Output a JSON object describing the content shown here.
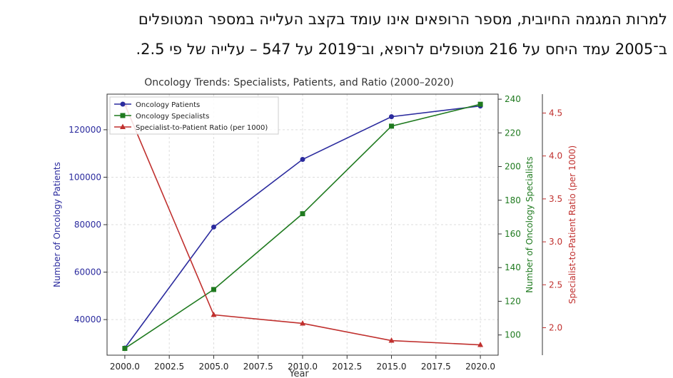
{
  "paragraph": {
    "line1": "למרות המגמה החיובית, מספר הרופאים אינו עומד בקצב העלייה במספר המטופלים",
    "line2": "ב־2005 עמד היחס על 216 מטופלים לרופא, וב־2019 על 547 – עלייה של פי 2.5."
  },
  "colors": {
    "patients": "#2b2b9e",
    "specialists": "#1f7a1f",
    "ratio": "#c0302e"
  },
  "chart_data": {
    "type": "line",
    "title": "Oncology Trends: Specialists, Patients, and Ratio (2000–2020)",
    "xlabel": "Year",
    "x": [
      2000,
      2005,
      2010,
      2015,
      2020
    ],
    "x_ticks": [
      "2000.0",
      "2002.5",
      "2005.0",
      "2007.5",
      "2010.0",
      "2012.5",
      "2015.0",
      "2017.5",
      "2020.0"
    ],
    "xlim": [
      1999,
      2021
    ],
    "grid": true,
    "legend_position": "top-left",
    "series": [
      {
        "name": "Oncology Patients",
        "axis": "left",
        "marker": "circle",
        "values": [
          28000,
          79000,
          107500,
          125500,
          130000
        ]
      },
      {
        "name": "Oncology Specialists",
        "axis": "right1",
        "marker": "square",
        "values": [
          92,
          127,
          172,
          224,
          237
        ]
      },
      {
        "name": "Specialist-to-Patient Ratio (per 1000)",
        "axis": "right2",
        "marker": "triangle",
        "values": [
          4.6,
          2.15,
          2.05,
          1.85,
          1.8
        ]
      }
    ],
    "axes": {
      "left": {
        "label": "Number of Oncology Patients",
        "ticks": [
          40000,
          60000,
          80000,
          100000,
          120000
        ],
        "tick_labels": [
          "40000",
          "60000",
          "80000",
          "100000",
          "120000"
        ],
        "ylim": [
          25000,
          135000
        ]
      },
      "right1": {
        "label": "Number of Oncology Specialists",
        "ticks": [
          100,
          120,
          140,
          160,
          180,
          200,
          220,
          240
        ],
        "tick_labels": [
          "100",
          "120",
          "140",
          "160",
          "180",
          "200",
          "220",
          "240"
        ],
        "ylim": [
          88,
          243
        ]
      },
      "right2": {
        "label": "Specialist-to-Patient Ratio (per 1000)",
        "ticks": [
          2.0,
          2.5,
          3.0,
          3.5,
          4.0,
          4.5
        ],
        "tick_labels": [
          "2.0",
          "2.5",
          "3.0",
          "3.5",
          "4.0",
          "4.5"
        ],
        "ylim": [
          1.68,
          4.72
        ]
      }
    }
  }
}
